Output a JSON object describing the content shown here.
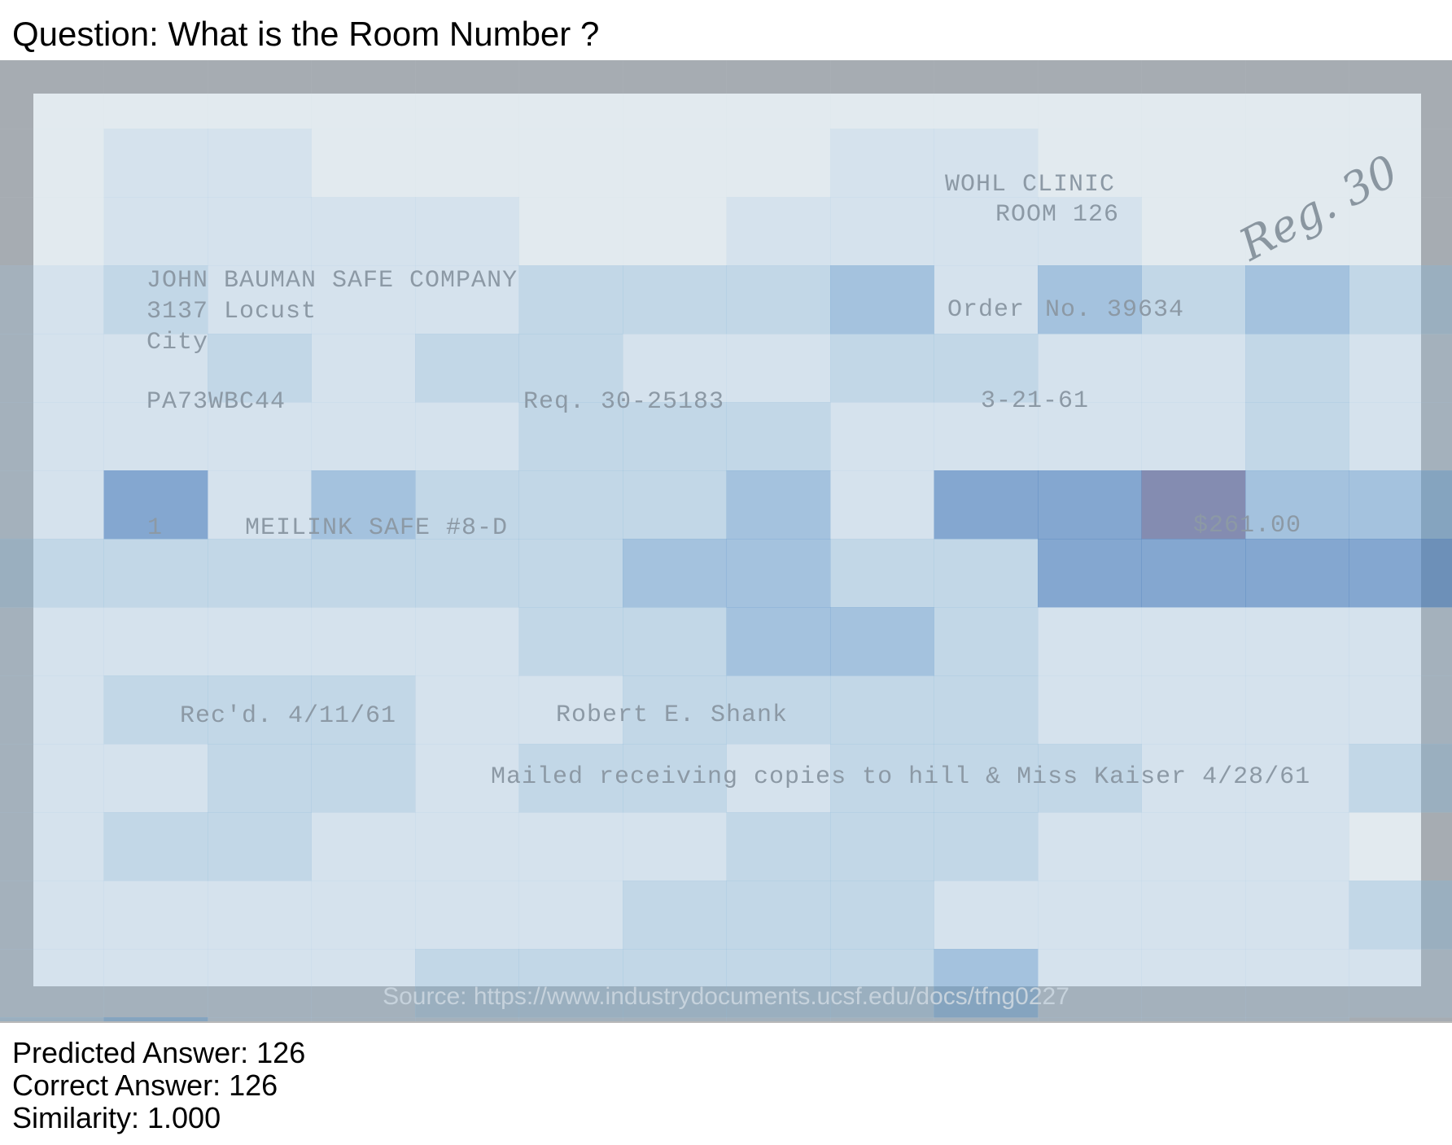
{
  "question": "Question: What is the Room Number ?",
  "document": {
    "clinic": "WOHL CLINIC",
    "room": "ROOM 126",
    "handwritten_note": "Reg. 30",
    "company": "JOHN BAUMAN SAFE COMPANY",
    "street": "3137 Locust",
    "city": "City",
    "order_label": "Order",
    "order_number": "No. 39634",
    "account_code": "PA73WBC44",
    "requisition": "Req. 30-25183",
    "date": "3-21-61",
    "item_qty": "1",
    "item_desc": "MEILINK SAFE #8-D",
    "item_price": "$261.00",
    "received": "Rec'd. 4/11/61",
    "signer": "Robert E. Shank",
    "mailed_note": "Mailed receiving copies to hill & Miss Kaiser 4/28/61"
  },
  "source": "Source: https://www.industrydocuments.ucsf.edu/docs/tfng0227",
  "results": {
    "predicted": "Predicted Answer: 126",
    "correct": "Correct Answer: 126",
    "similarity": "Similarity: 1.000"
  }
}
